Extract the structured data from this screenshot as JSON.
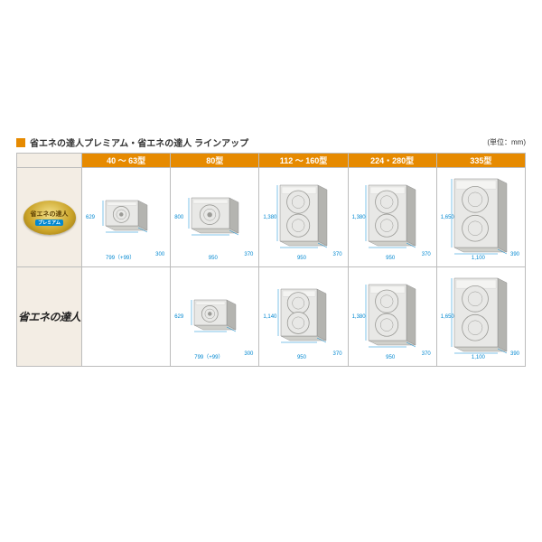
{
  "title": "省エネの達人プレミアム・省エネの達人 ラインアップ",
  "unit_label": "(単位：mm)",
  "columns": [
    "40 ～ 63型",
    "80型",
    "112 ～ 160型",
    "224・280型",
    "335型"
  ],
  "rows": [
    {
      "label": {
        "line1": "省エネの達人",
        "line2": "プレミアム"
      },
      "kind": "premium"
    },
    {
      "label": "省エネの達人",
      "kind": "plain"
    }
  ],
  "cells": [
    [
      {
        "w": "799（+99）",
        "d": "300",
        "h": "629",
        "fan": 1,
        "size": "s"
      },
      {
        "w": "950",
        "d": "370",
        "h": "800",
        "fan": 1,
        "size": "m"
      },
      {
        "w": "950",
        "d": "370",
        "h": "1,380",
        "fan": 2,
        "size": "l"
      },
      {
        "w": "950",
        "d": "370",
        "h": "1,380",
        "fan": 2,
        "size": "l"
      },
      {
        "w": "1,100",
        "d": "390",
        "h": "1,650",
        "fan": 2,
        "size": "xl"
      }
    ],
    [
      null,
      {
        "w": "799（+99）",
        "d": "300",
        "h": "629",
        "fan": 1,
        "size": "s"
      },
      {
        "w": "950",
        "d": "370",
        "h": "1,140",
        "fan": 2,
        "size": "ml"
      },
      {
        "w": "950",
        "d": "370",
        "h": "1,380",
        "fan": 2,
        "size": "l"
      },
      {
        "w": "1,100",
        "d": "390",
        "h": "1,650",
        "fan": 2,
        "size": "xl"
      }
    ]
  ],
  "colors": {
    "header_bg": "#e68a00",
    "row_bg": "#f3ede4",
    "border": "#bcbcbc",
    "dim_text": "#0288d1",
    "unit_body": "#e8e8e6",
    "unit_edge": "#b4b4b0",
    "fan_grill": "#9a9a96"
  },
  "sizes": {
    "s": {
      "bw": 36,
      "bh": 28
    },
    "m": {
      "bw": 42,
      "bh": 34
    },
    "ml": {
      "bw": 40,
      "bh": 52
    },
    "l": {
      "bw": 42,
      "bh": 62
    },
    "xl": {
      "bw": 48,
      "bh": 76
    }
  }
}
